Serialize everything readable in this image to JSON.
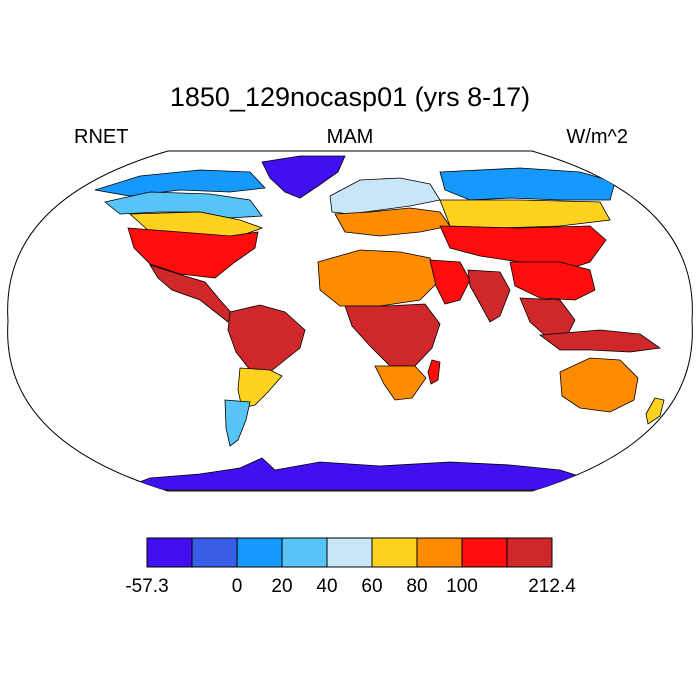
{
  "title": "1850_129nocasp01 (yrs 8-17)",
  "left_label": "RNET",
  "center_label": "MAM",
  "right_label": "W/m^2",
  "colorbar": {
    "colors": [
      "#4010f0",
      "#3a5fe6",
      "#1599ff",
      "#56c4f6",
      "#c8e6f8",
      "#ffd21f",
      "#ff8c00",
      "#ff0c0c",
      "#d0272b"
    ],
    "tick_labels": [
      "-57.3",
      "0",
      "20",
      "40",
      "60",
      "80",
      "100",
      "212.4"
    ],
    "tick_values": [
      -57.3,
      0,
      20,
      40,
      60,
      80,
      100,
      212.4
    ],
    "bounds": [
      -57.3,
      -20,
      0,
      20,
      40,
      60,
      80,
      100,
      150,
      212.4
    ]
  },
  "map": {
    "projection": "robinson",
    "variable": "RNET",
    "season": "MAM",
    "units": "W/m^2",
    "ocean_color": "#ffffff",
    "regions": [
      {
        "name": "antarctica",
        "level": 0
      },
      {
        "name": "greenland",
        "level": 0
      },
      {
        "name": "canada-arctic",
        "level": 2
      },
      {
        "name": "canada-north",
        "level": 3
      },
      {
        "name": "canada-south",
        "level": 5
      },
      {
        "name": "usa",
        "level": 7
      },
      {
        "name": "mexico-central-america",
        "level": 8
      },
      {
        "name": "south-america-north",
        "level": 8
      },
      {
        "name": "south-america-south",
        "level": 5
      },
      {
        "name": "patagonia",
        "level": 3
      },
      {
        "name": "europe-north",
        "level": 4
      },
      {
        "name": "europe-south",
        "level": 6
      },
      {
        "name": "siberia",
        "level": 2
      },
      {
        "name": "russia-central",
        "level": 5
      },
      {
        "name": "central-asia",
        "level": 7
      },
      {
        "name": "sahara",
        "level": 6
      },
      {
        "name": "arabia",
        "level": 7
      },
      {
        "name": "india",
        "level": 8
      },
      {
        "name": "china",
        "level": 7
      },
      {
        "name": "southeast-asia",
        "level": 8
      },
      {
        "name": "central-africa",
        "level": 8
      },
      {
        "name": "southern-africa",
        "level": 6
      },
      {
        "name": "madagascar",
        "level": 7
      },
      {
        "name": "indonesia",
        "level": 8
      },
      {
        "name": "australia",
        "level": 6
      },
      {
        "name": "new-zealand",
        "level": 5
      }
    ]
  }
}
